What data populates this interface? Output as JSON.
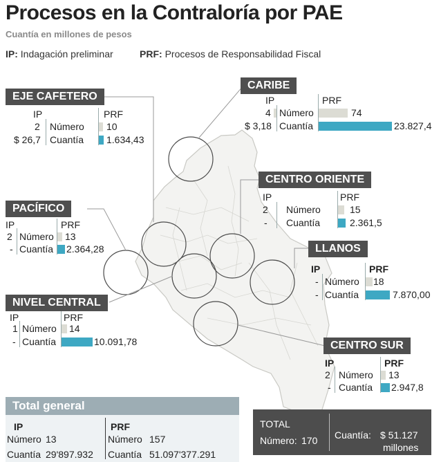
{
  "title": "Procesos en la Contraloría por PAE",
  "subtitle": "Cuantía en millones de pesos",
  "legend": {
    "ip_abbr": "IP:",
    "ip_text": "Indagación preliminar",
    "prf_abbr": "PRF:",
    "prf_text": "Procesos de Responsabilidad Fiscal"
  },
  "labels": {
    "ip": "IP",
    "prf": "PRF",
    "numero": "Número",
    "cuantia": "Cuantía"
  },
  "regions": {
    "eje_cafetero": {
      "name": "EJE CAFETERO",
      "ip_num": "2",
      "ip_cuantia": "$ 26,7",
      "prf_num": "10",
      "prf_cuantia": "1.634,43",
      "prf_num_value": 10,
      "prf_cuantia_value": 1634.43
    },
    "caribe": {
      "name": "CARIBE",
      "ip_num": "4",
      "ip_cuantia": "$ 3,18",
      "prf_num": "74",
      "prf_cuantia": "23.827,4",
      "prf_num_value": 74,
      "prf_cuantia_value": 23827.4
    },
    "centro_oriente": {
      "name": "CENTRO ORIENTE",
      "ip_num": "2",
      "ip_cuantia": "-",
      "prf_num": "15",
      "prf_cuantia": "2.361,5",
      "prf_num_value": 15,
      "prf_cuantia_value": 2361.5
    },
    "pacifico": {
      "name": "PACÍFICO",
      "ip_num": "2",
      "ip_cuantia": "-",
      "prf_num": "13",
      "prf_cuantia": "2.364,28",
      "prf_num_value": 13,
      "prf_cuantia_value": 2364.28
    },
    "llanos": {
      "name": "LLANOS",
      "ip_num": "-",
      "ip_cuantia": "-",
      "prf_num": "18",
      "prf_cuantia": "7.870,00",
      "prf_num_value": 18,
      "prf_cuantia_value": 7870.0
    },
    "nivel_central": {
      "name": "NIVEL CENTRAL",
      "ip_num": "1",
      "ip_cuantia": "-",
      "prf_num": "14",
      "prf_cuantia": "10.091,78",
      "prf_num_value": 14,
      "prf_cuantia_value": 10091.78
    },
    "centro_sur": {
      "name": "CENTRO SUR",
      "ip_num": "2",
      "ip_cuantia": "-",
      "prf_num": "13",
      "prf_cuantia": "2.947,8",
      "prf_num_value": 13,
      "prf_cuantia_value": 2947.8
    }
  },
  "total_general": {
    "header": "Total general",
    "ip_label": "IP",
    "prf_label": "PRF",
    "ip_numero": "13",
    "ip_cuantia": "29'897.932",
    "prf_numero": "157",
    "prf_cuantia": "51.097'377.291"
  },
  "total": {
    "label": "TOTAL",
    "numero_label": "Número:",
    "numero": "170",
    "cuantia_label": "Cuantía:",
    "cuantia_value": "$ 51.127",
    "cuantia_unit": "millones"
  },
  "colors": {
    "dark_box": "#4f4f4f",
    "bar_blue": "#3ea8c3",
    "bar_gray": "#dcdcd4",
    "total_header": "#9dadb4"
  }
}
